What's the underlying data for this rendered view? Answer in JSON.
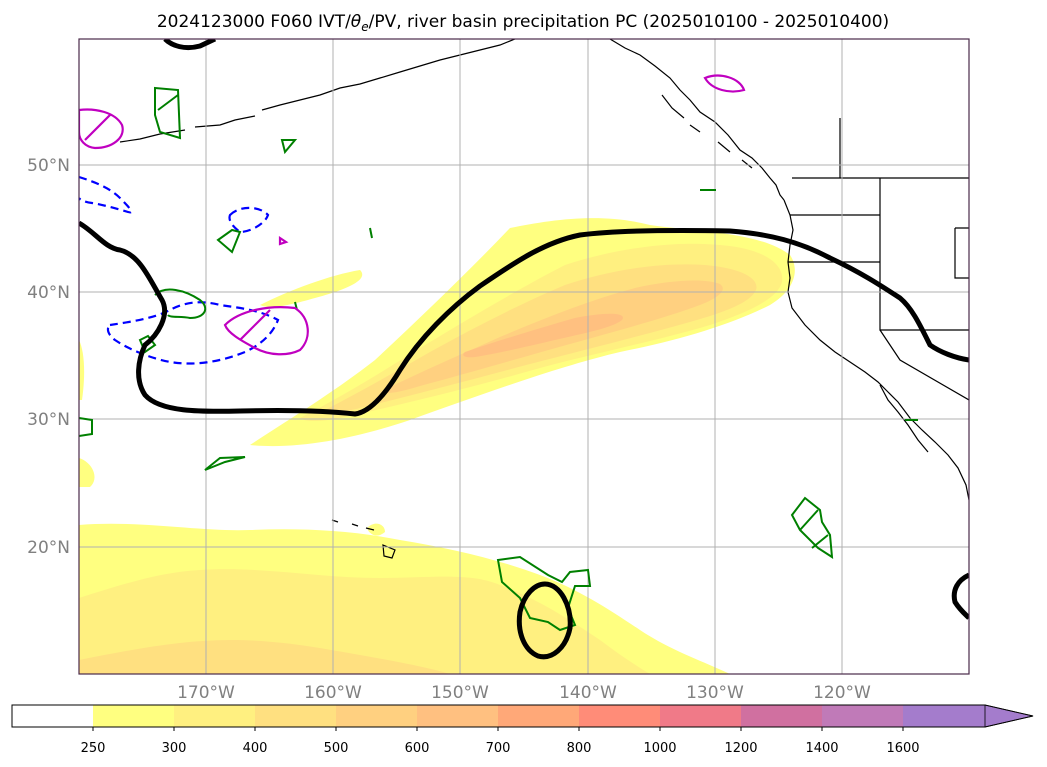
{
  "title": "2024123000 F060 IVT/θe/PV, river basin precipitation PC (2025010100 - 2025010400)",
  "title_parts": {
    "prefix": "2024123000 F060 IVT/",
    "theta": "θ",
    "sub": "e",
    "suffix": "/PV, river basin precipitation PC (2025010100 - 2025010400)"
  },
  "map": {
    "lon_labels": [
      "170°W",
      "160°W",
      "150°W",
      "140°W",
      "130°W",
      "120°W"
    ],
    "lat_labels": [
      "50°N",
      "40°N",
      "30°N",
      "20°N"
    ],
    "lon_range": [
      -180,
      -110
    ],
    "lat_range": [
      10,
      60
    ]
  },
  "colorbar": {
    "labels": [
      "250",
      "300",
      "400",
      "500",
      "600",
      "700",
      "800",
      "1000",
      "1200",
      "1400",
      "1600"
    ],
    "colors": [
      "#ffff80",
      "#fff080",
      "#ffe080",
      "#ffd080",
      "#ffc080",
      "#ffa878",
      "#ff8c78",
      "#f07a88",
      "#d070a0",
      "#c07ab8",
      "#a47ccc"
    ]
  },
  "styles": {
    "theta_e_color": "#000000",
    "pv_positive_color": "#008000",
    "pv_dashed_color": "#0000ff",
    "magenta_color": "#c000c0"
  }
}
